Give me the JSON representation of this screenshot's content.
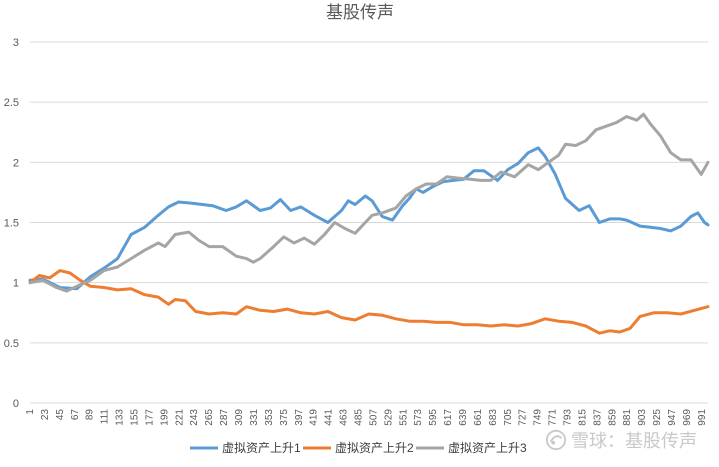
{
  "chart_data": {
    "type": "line",
    "title": "基股传声",
    "xlabel": "",
    "ylabel": "",
    "ylim": [
      0,
      3
    ],
    "yticks": [
      "0",
      "0.5",
      "1",
      "1.5",
      "2",
      "2.5",
      "3"
    ],
    "yticks_values": [
      0,
      0.5,
      1,
      1.5,
      2,
      2.5,
      3
    ],
    "xlim": [
      1,
      1000
    ],
    "xticks": [
      "1",
      "23",
      "45",
      "67",
      "89",
      "111",
      "133",
      "155",
      "177",
      "199",
      "221",
      "243",
      "265",
      "287",
      "309",
      "331",
      "353",
      "375",
      "397",
      "419",
      "441",
      "463",
      "485",
      "507",
      "529",
      "551",
      "573",
      "595",
      "617",
      "639",
      "661",
      "683",
      "705",
      "727",
      "749",
      "771",
      "793",
      "815",
      "837",
      "859",
      "881",
      "903",
      "925",
      "947",
      "969",
      "991"
    ],
    "grid": "horizontal",
    "legend_position": "bottom",
    "series": [
      {
        "name": "虚拟资产上升1",
        "color": "#5b9bd5",
        "x": [
          1,
          20,
          45,
          70,
          90,
          110,
          130,
          150,
          170,
          190,
          205,
          220,
          240,
          255,
          270,
          290,
          305,
          320,
          340,
          355,
          370,
          385,
          400,
          420,
          440,
          460,
          470,
          480,
          495,
          505,
          520,
          535,
          550,
          560,
          570,
          580,
          595,
          610,
          625,
          640,
          655,
          670,
          690,
          705,
          720,
          735,
          750,
          760,
          775,
          790,
          810,
          825,
          840,
          855,
          870,
          880,
          900,
          915,
          930,
          945,
          960,
          975,
          985,
          995,
          1000
        ],
        "y": [
          1.02,
          1.03,
          0.96,
          0.95,
          1.05,
          1.12,
          1.2,
          1.4,
          1.46,
          1.56,
          1.63,
          1.67,
          1.66,
          1.65,
          1.64,
          1.6,
          1.63,
          1.68,
          1.6,
          1.62,
          1.69,
          1.6,
          1.63,
          1.56,
          1.5,
          1.6,
          1.68,
          1.65,
          1.72,
          1.68,
          1.55,
          1.52,
          1.64,
          1.7,
          1.78,
          1.75,
          1.8,
          1.84,
          1.85,
          1.86,
          1.93,
          1.93,
          1.85,
          1.94,
          1.99,
          2.08,
          2.12,
          2.05,
          1.9,
          1.7,
          1.6,
          1.64,
          1.5,
          1.53,
          1.53,
          1.52,
          1.47,
          1.46,
          1.45,
          1.43,
          1.47,
          1.55,
          1.58,
          1.5,
          1.48
        ]
      },
      {
        "name": "虚拟资产上升2",
        "color": "#ed7d31",
        "x": [
          1,
          15,
          30,
          45,
          60,
          75,
          90,
          110,
          130,
          150,
          170,
          190,
          205,
          215,
          230,
          245,
          265,
          285,
          305,
          320,
          340,
          360,
          380,
          400,
          420,
          440,
          460,
          480,
          500,
          520,
          540,
          560,
          580,
          600,
          620,
          640,
          660,
          680,
          700,
          720,
          740,
          760,
          780,
          800,
          820,
          840,
          855,
          870,
          885,
          900,
          920,
          940,
          960,
          980,
          1000
        ],
        "y": [
          1.0,
          1.06,
          1.04,
          1.1,
          1.08,
          1.02,
          0.97,
          0.96,
          0.94,
          0.95,
          0.9,
          0.88,
          0.82,
          0.86,
          0.85,
          0.76,
          0.74,
          0.75,
          0.74,
          0.8,
          0.77,
          0.76,
          0.78,
          0.75,
          0.74,
          0.76,
          0.71,
          0.69,
          0.74,
          0.73,
          0.7,
          0.68,
          0.68,
          0.67,
          0.67,
          0.65,
          0.65,
          0.64,
          0.65,
          0.64,
          0.66,
          0.7,
          0.68,
          0.67,
          0.64,
          0.58,
          0.6,
          0.59,
          0.62,
          0.72,
          0.75,
          0.75,
          0.74,
          0.77,
          0.8
        ]
      },
      {
        "name": "虚拟资产上升3",
        "color": "#a5a5a5",
        "x": [
          1,
          20,
          40,
          55,
          70,
          90,
          110,
          130,
          150,
          170,
          190,
          200,
          215,
          235,
          250,
          265,
          285,
          305,
          320,
          330,
          340,
          360,
          375,
          390,
          405,
          420,
          435,
          450,
          465,
          480,
          495,
          505,
          520,
          540,
          555,
          570,
          585,
          600,
          615,
          630,
          650,
          665,
          680,
          695,
          715,
          735,
          750,
          765,
          780,
          790,
          805,
          820,
          835,
          850,
          865,
          880,
          895,
          905,
          915,
          930,
          945,
          960,
          975,
          990,
          1000
        ],
        "y": [
          1.0,
          1.02,
          0.96,
          0.93,
          0.97,
          1.02,
          1.1,
          1.13,
          1.2,
          1.27,
          1.33,
          1.3,
          1.4,
          1.42,
          1.35,
          1.3,
          1.3,
          1.22,
          1.2,
          1.17,
          1.2,
          1.3,
          1.38,
          1.33,
          1.37,
          1.32,
          1.4,
          1.5,
          1.45,
          1.41,
          1.5,
          1.56,
          1.58,
          1.62,
          1.72,
          1.78,
          1.82,
          1.82,
          1.88,
          1.87,
          1.86,
          1.85,
          1.85,
          1.92,
          1.88,
          1.98,
          1.94,
          2.0,
          2.06,
          2.15,
          2.14,
          2.18,
          2.27,
          2.3,
          2.33,
          2.38,
          2.35,
          2.4,
          2.32,
          2.22,
          2.08,
          2.02,
          2.02,
          1.9,
          2.0
        ]
      }
    ]
  },
  "watermark": {
    "brand_icon": "snowball-icon",
    "text": "雪球：基股传声"
  }
}
